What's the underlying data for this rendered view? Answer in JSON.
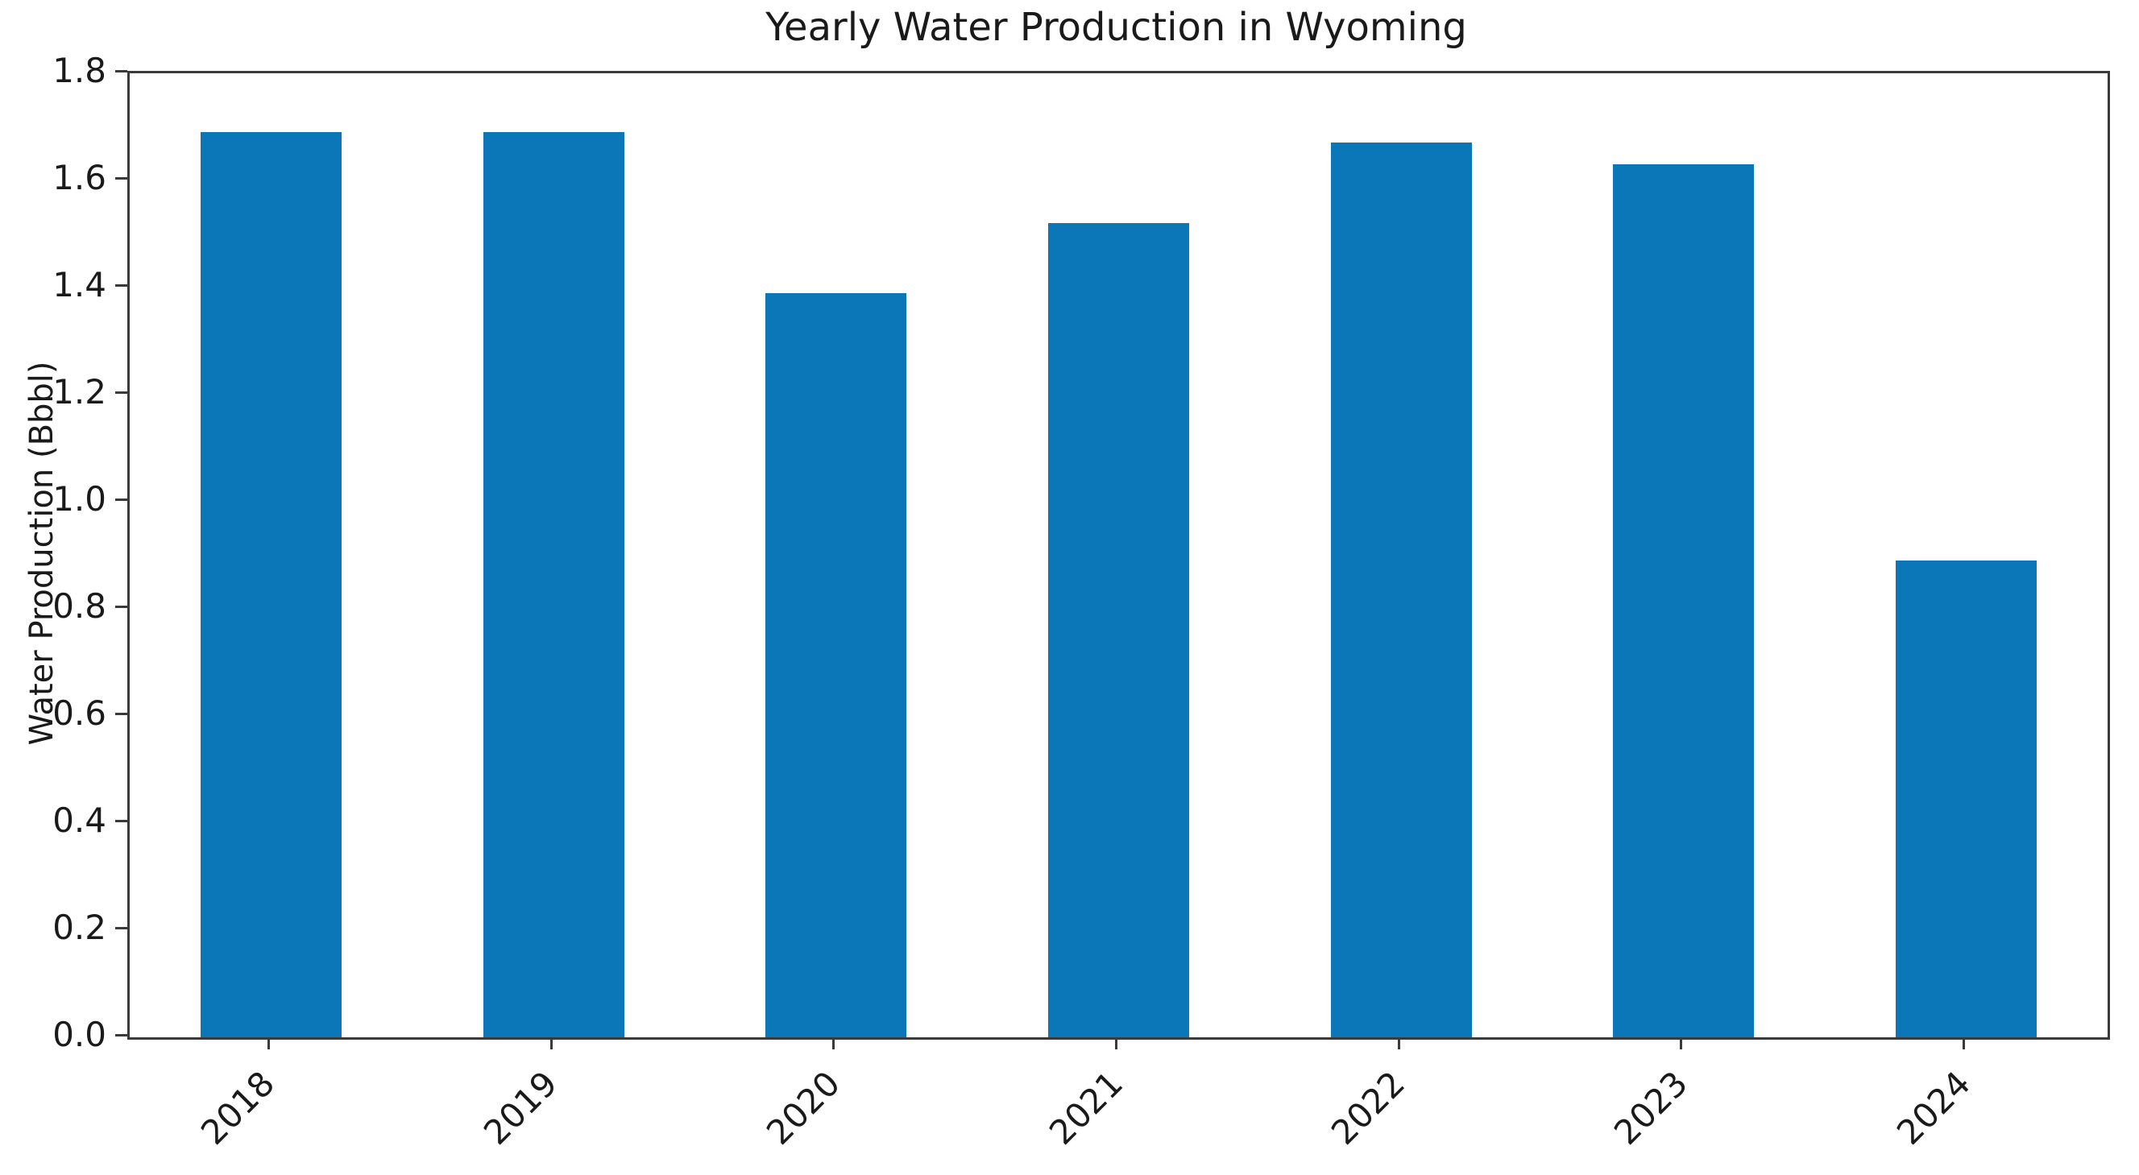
{
  "figure": {
    "title": "Yearly Water Production in Wyoming",
    "ylabel": "Water Production (Bbbl)"
  },
  "chart_data": {
    "type": "bar",
    "title": "Yearly Water Production in Wyoming",
    "xlabel": "",
    "ylabel": "Water Production (Bbbl)",
    "categories": [
      "2018",
      "2019",
      "2020",
      "2021",
      "2022",
      "2023",
      "2024"
    ],
    "values": [
      1.69,
      1.69,
      1.39,
      1.52,
      1.67,
      1.63,
      0.89
    ],
    "ylim": [
      0,
      1.8
    ],
    "yticks": [
      0.0,
      0.2,
      0.4,
      0.6,
      0.8,
      1.0,
      1.2,
      1.4,
      1.6,
      1.8
    ],
    "ytick_labels": [
      "0.0",
      "0.2",
      "0.4",
      "0.6",
      "0.8",
      "1.0",
      "1.2",
      "1.4",
      "1.6",
      "1.8"
    ],
    "x_tick_rotation_deg": 45,
    "bar_width_fraction": 0.5,
    "grid": false,
    "legend": null,
    "bar_color": "#0c77b8",
    "axis_color": "#3a3a3a",
    "text_color": "#1a1a1a",
    "background_color": "#ffffff"
  }
}
